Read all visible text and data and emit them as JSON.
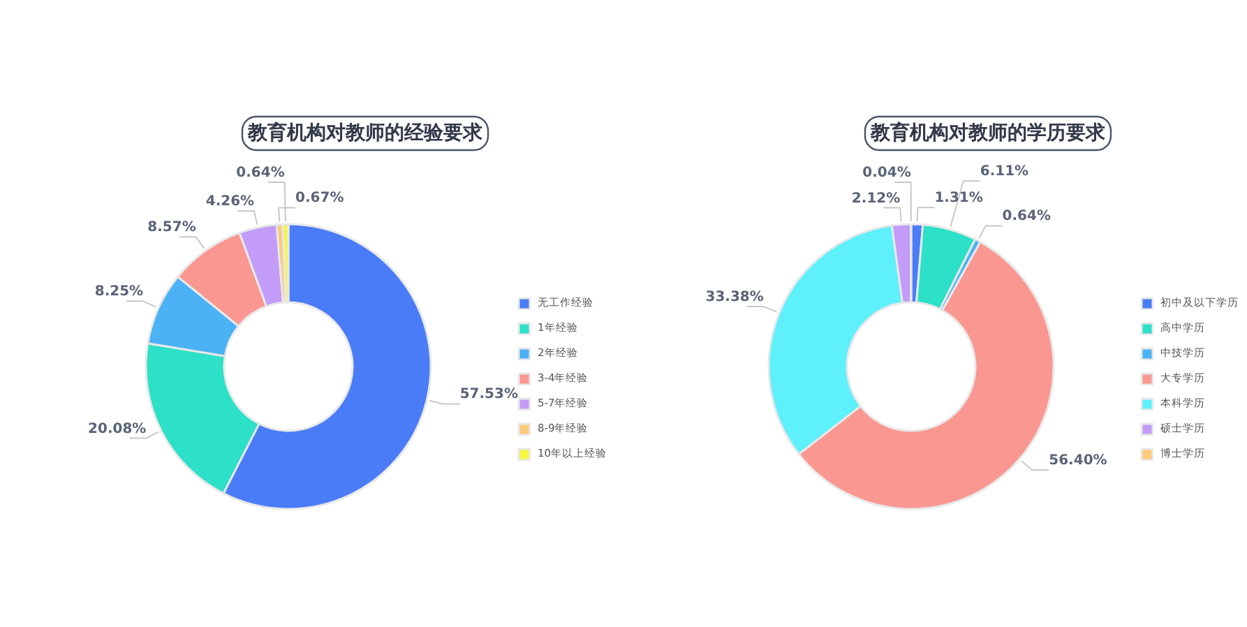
{
  "chart_data": [
    {
      "type": "donut",
      "title": "教育机构对教师的经验要求",
      "legend": "right",
      "categories": [
        "无工作经验",
        "1年经验",
        "2年经验",
        "3-4年经验",
        "5-7年经验",
        "8-9年经验",
        "10年以上经验"
      ],
      "values": [
        57.53,
        20.08,
        8.25,
        8.57,
        4.26,
        0.67,
        0.64
      ],
      "value_labels": [
        "57.53%",
        "20.08%",
        "8.25%",
        "8.57%",
        "4.26%",
        "0.67%",
        "0.64%"
      ],
      "colors": [
        "#4a7cf7",
        "#2de0c8",
        "#4bb2f5",
        "#fa9791",
        "#c29cf8",
        "#fdc97a",
        "#f9f73e"
      ]
    },
    {
      "type": "donut",
      "title": "教育机构对教师的学历要求",
      "legend": "right",
      "categories": [
        "初中及以下学历",
        "高中学历",
        "中技学历",
        "大专学历",
        "本科学历",
        "硕士学历",
        "博士学历"
      ],
      "values": [
        1.31,
        6.11,
        0.64,
        56.4,
        33.38,
        2.12,
        0.04
      ],
      "value_labels": [
        "1.31%",
        "6.11%",
        "0.64%",
        "56.40%",
        "33.38%",
        "2.12%",
        "0.04%"
      ],
      "colors": [
        "#4a7cf7",
        "#2de0c8",
        "#4bb2f5",
        "#fa9791",
        "#5ef0fb",
        "#c29cf8",
        "#fdc97a"
      ]
    }
  ]
}
